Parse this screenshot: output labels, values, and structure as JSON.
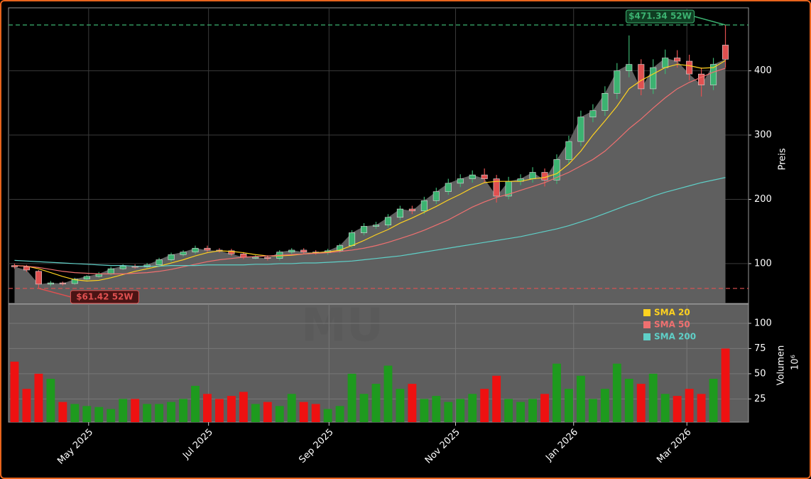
{
  "chart_data": {
    "type": "candlestick",
    "watermark": "MU",
    "ylabel": "Preis",
    "categories": [
      null,
      null,
      null,
      null,
      null,
      null,
      null,
      null,
      null,
      null,
      null,
      null,
      null,
      null,
      null,
      null,
      null,
      null,
      null,
      null,
      null,
      null,
      null,
      null,
      null,
      null,
      null,
      null,
      null,
      null,
      null,
      null,
      null,
      null,
      null,
      null,
      null,
      null,
      null,
      null,
      null,
      null,
      null,
      null,
      null,
      null,
      null,
      null,
      null,
      null,
      null,
      null,
      null,
      null,
      null,
      null,
      null,
      null,
      null,
      null
    ],
    "open": [
      97,
      95,
      88,
      68,
      70,
      69,
      76,
      80,
      84,
      92,
      96,
      95,
      98,
      106,
      114,
      118,
      124,
      121,
      120,
      115,
      110,
      110,
      108,
      118,
      121,
      118,
      117,
      120,
      128,
      148,
      158,
      160,
      172,
      185,
      182,
      198,
      212,
      225,
      232,
      238,
      232,
      205,
      228,
      232,
      242,
      230,
      262,
      290,
      328,
      338,
      365,
      400,
      410,
      372,
      405,
      420,
      415,
      395,
      378,
      440
    ],
    "high": [
      100,
      98,
      90,
      73,
      72,
      78,
      82,
      87,
      95,
      99,
      99,
      101,
      109,
      117,
      121,
      128,
      128,
      124,
      123,
      118,
      113,
      113,
      121,
      124,
      124,
      121,
      123,
      131,
      152,
      163,
      165,
      177,
      190,
      190,
      204,
      218,
      232,
      239,
      245,
      248,
      238,
      235,
      239,
      250,
      248,
      270,
      299,
      338,
      348,
      376,
      412,
      455,
      418,
      418,
      433,
      432,
      425,
      405,
      420,
      471.34
    ],
    "low": [
      92,
      87,
      61.42,
      65,
      66,
      67,
      74,
      78,
      82,
      90,
      92,
      93,
      95,
      103,
      111,
      115,
      118,
      117,
      112,
      107,
      107,
      105,
      105,
      115,
      115,
      114,
      114,
      117,
      125,
      144,
      154,
      156,
      168,
      177,
      177,
      193,
      207,
      219,
      226,
      226,
      195,
      200,
      222,
      226,
      220,
      224,
      255,
      283,
      320,
      330,
      356,
      390,
      362,
      364,
      395,
      405,
      385,
      360,
      370,
      405
    ],
    "close": [
      95,
      90,
      68,
      70,
      69,
      76,
      80,
      84,
      92,
      96,
      95,
      98,
      106,
      114,
      118,
      124,
      121,
      120,
      115,
      110,
      110,
      108,
      118,
      121,
      118,
      117,
      120,
      128,
      148,
      158,
      160,
      172,
      185,
      182,
      198,
      212,
      225,
      232,
      238,
      232,
      205,
      228,
      232,
      242,
      230,
      262,
      290,
      328,
      338,
      365,
      400,
      410,
      372,
      405,
      420,
      415,
      395,
      378,
      410,
      418
    ],
    "up_color": "#3cb371",
    "down_color": "#e05050",
    "area_color": "#5f5f5f",
    "ylim": [
      38,
      498
    ],
    "yticks": [
      100,
      200,
      300,
      400
    ],
    "grid": true,
    "xticks": [
      {
        "value": 6.15,
        "label": "May 2025"
      },
      {
        "value": 16.1,
        "label": "Jul 2025"
      },
      {
        "value": 26.1,
        "label": "Sep 2025"
      },
      {
        "value": 36.6,
        "label": "Nov 2025"
      },
      {
        "value": 46.4,
        "label": "Jan 2026"
      },
      {
        "value": 55.8,
        "label": "Mar 2026"
      }
    ],
    "legend": "upper right",
    "sma": [
      {
        "name": "SMA 20",
        "color": "#ffd21f",
        "values": [
          97,
          96,
          92,
          86,
          80,
          75,
          73,
          74,
          78,
          83,
          88,
          92,
          96,
          101,
          106,
          112,
          117,
          120,
          119,
          117,
          114,
          112,
          112,
          113,
          115,
          117,
          118,
          121,
          128,
          136,
          145,
          153,
          163,
          171,
          180,
          189,
          199,
          208,
          218,
          226,
          228,
          228,
          228,
          232,
          234,
          240,
          255,
          275,
          300,
          322,
          345,
          372,
          385,
          395,
          405,
          410,
          408,
          404,
          405,
          416
        ]
      },
      {
        "name": "SMA 50",
        "color": "#f07070",
        "values": [
          97,
          96,
          94,
          91,
          88,
          86,
          85,
          84,
          84,
          84,
          85,
          86,
          88,
          91,
          95,
          99,
          103,
          106,
          108,
          110,
          111,
          112,
          113,
          114,
          115,
          116,
          117,
          119,
          121,
          124,
          128,
          133,
          139,
          145,
          152,
          160,
          168,
          178,
          188,
          196,
          203,
          208,
          214,
          220,
          226,
          234,
          242,
          252,
          262,
          275,
          292,
          310,
          325,
          342,
          358,
          372,
          382,
          390,
          398,
          404
        ]
      },
      {
        "name": "SMA 200",
        "color": "#5fd0c8",
        "values": [
          105,
          104,
          103,
          102,
          101,
          100,
          99,
          98,
          97,
          97,
          96,
          96,
          96,
          97,
          97,
          97,
          98,
          98,
          98,
          98,
          99,
          99,
          100,
          100,
          101,
          101,
          102,
          103,
          104,
          106,
          108,
          110,
          112,
          115,
          118,
          121,
          124,
          127,
          130,
          133,
          136,
          139,
          142,
          146,
          150,
          154,
          159,
          165,
          171,
          178,
          185,
          192,
          198,
          205,
          211,
          216,
          221,
          226,
          230,
          234
        ]
      }
    ],
    "annotations": [
      {
        "value": 471.34,
        "label": "$471.34 52W",
        "color": "#3cb371"
      },
      {
        "value": 61.42,
        "label": "$61.42 52W",
        "color": "#e05050"
      }
    ],
    "volume": {
      "label": "Volumen",
      "unit": "10⁶",
      "ylim": [
        2,
        119
      ],
      "yticks": [
        25,
        50,
        75,
        100
      ],
      "values": [
        62,
        35,
        50,
        45,
        22,
        20,
        18,
        17,
        15,
        25,
        25,
        20,
        20,
        22,
        25,
        38,
        30,
        25,
        28,
        32,
        20,
        22,
        18,
        30,
        22,
        20,
        15,
        18,
        50,
        30,
        40,
        58,
        35,
        40,
        25,
        28,
        22,
        25,
        30,
        35,
        48,
        25,
        22,
        25,
        30,
        60,
        35,
        48,
        25,
        35,
        60,
        45,
        40,
        50,
        30,
        28,
        35,
        30,
        45,
        75
      ],
      "up_color": "#1e9a1e",
      "down_color": "#ee1111"
    }
  }
}
